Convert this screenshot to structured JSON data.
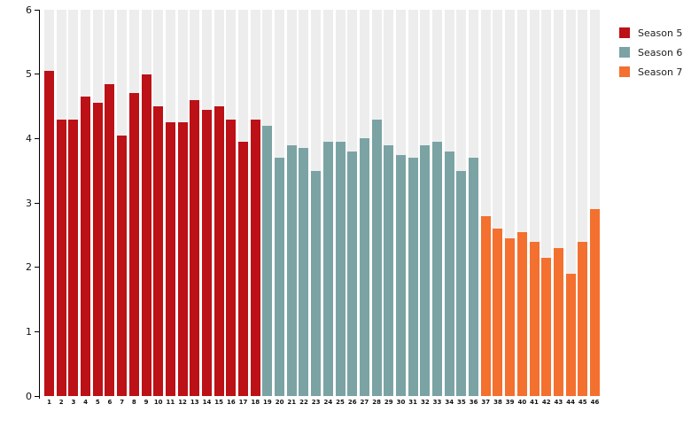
{
  "chart_data": {
    "type": "bar",
    "title": "",
    "xlabel": "",
    "ylabel": "",
    "ylim": [
      0,
      6
    ],
    "yticks": [
      "0",
      "1",
      "2",
      "3",
      "4",
      "5",
      "6"
    ],
    "grid": false,
    "legend_position": "top-right",
    "slot_background_color": "#ededed",
    "categories": [
      "1",
      "2",
      "3",
      "4",
      "5",
      "6",
      "7",
      "8",
      "9",
      "10",
      "11",
      "12",
      "13",
      "14",
      "15",
      "16",
      "17",
      "18",
      "19",
      "20",
      "21",
      "22",
      "23",
      "24",
      "25",
      "26",
      "27",
      "28",
      "29",
      "30",
      "31",
      "32",
      "33",
      "34",
      "35",
      "36",
      "37",
      "38",
      "39",
      "40",
      "41",
      "42",
      "43",
      "44",
      "45",
      "46"
    ],
    "series": [
      {
        "name": "Season 5",
        "color": "#bb1117",
        "start_category": "1",
        "values": [
          5.05,
          4.3,
          4.3,
          4.65,
          4.55,
          4.85,
          4.05,
          4.7,
          5.0,
          4.5,
          4.25,
          4.25,
          4.6,
          4.45,
          4.5,
          4.3,
          3.95,
          4.3
        ]
      },
      {
        "name": "Season 6",
        "color": "#7ba3a4",
        "start_category": "19",
        "values": [
          4.2,
          3.7,
          3.9,
          3.85,
          3.5,
          3.95,
          3.95,
          3.8,
          4.0,
          4.3,
          3.9,
          3.75,
          3.7,
          3.9,
          3.95,
          3.8,
          3.5,
          3.7
        ]
      },
      {
        "name": "Season 7",
        "color": "#f3702f",
        "start_category": "37",
        "values": [
          2.8,
          2.6,
          2.45,
          2.55,
          2.4,
          2.15,
          2.3,
          1.9,
          2.4,
          2.9
        ]
      }
    ]
  },
  "legend": {
    "items": [
      {
        "label": "Season 5",
        "color": "#bb1117"
      },
      {
        "label": "Season 6",
        "color": "#7ba3a4"
      },
      {
        "label": "Season 7",
        "color": "#f3702f"
      }
    ]
  }
}
